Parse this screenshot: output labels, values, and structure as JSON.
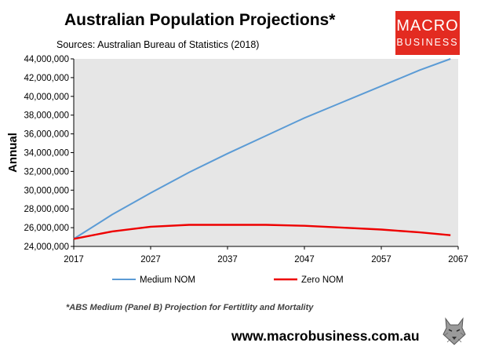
{
  "header": {
    "title": "Australian Population Projections*",
    "subtitle": "Sources: Australian Bureau of Statistics (2018)"
  },
  "logo": {
    "line1": "MACRO",
    "line2": "BUSINESS"
  },
  "footer": {
    "footnote": "*ABS Medium (Panel B) Projection for Fertitlity and Mortality",
    "website": "www.macrobusiness.com.au",
    "mascot_icon": "wolf-icon"
  },
  "colors": {
    "plot_bg": "#e6e6e6",
    "medium": "#5b9bd5",
    "zero": "#ee0000",
    "logo_bg": "#e32b21"
  },
  "chart_data": {
    "type": "line",
    "title": "Australian Population Projections*",
    "xlabel": "",
    "ylabel": "Annual",
    "xlim": [
      2017,
      2067
    ],
    "ylim": [
      24000000,
      44000000
    ],
    "x_ticks": [
      "2017",
      "2027",
      "2037",
      "2047",
      "2057",
      "2067"
    ],
    "y_ticks": [
      "24,000,000",
      "26,000,000",
      "28,000,000",
      "30,000,000",
      "32,000,000",
      "34,000,000",
      "36,000,000",
      "38,000,000",
      "40,000,000",
      "42,000,000",
      "44,000,000"
    ],
    "grid": false,
    "legend_position": "bottom",
    "series": [
      {
        "name": "Medium NOM",
        "color": "#5b9bd5",
        "x": [
          2017,
          2022,
          2027,
          2032,
          2037,
          2042,
          2047,
          2052,
          2057,
          2062,
          2066
        ],
        "values": [
          24800000,
          27400000,
          29700000,
          31900000,
          33900000,
          35800000,
          37700000,
          39400000,
          41100000,
          42800000,
          44000000
        ]
      },
      {
        "name": "Zero NOM",
        "color": "#ee0000",
        "x": [
          2017,
          2022,
          2027,
          2032,
          2037,
          2042,
          2047,
          2052,
          2057,
          2062,
          2066
        ],
        "values": [
          24800000,
          25600000,
          26100000,
          26300000,
          26300000,
          26300000,
          26200000,
          26000000,
          25800000,
          25500000,
          25200000
        ]
      }
    ]
  }
}
